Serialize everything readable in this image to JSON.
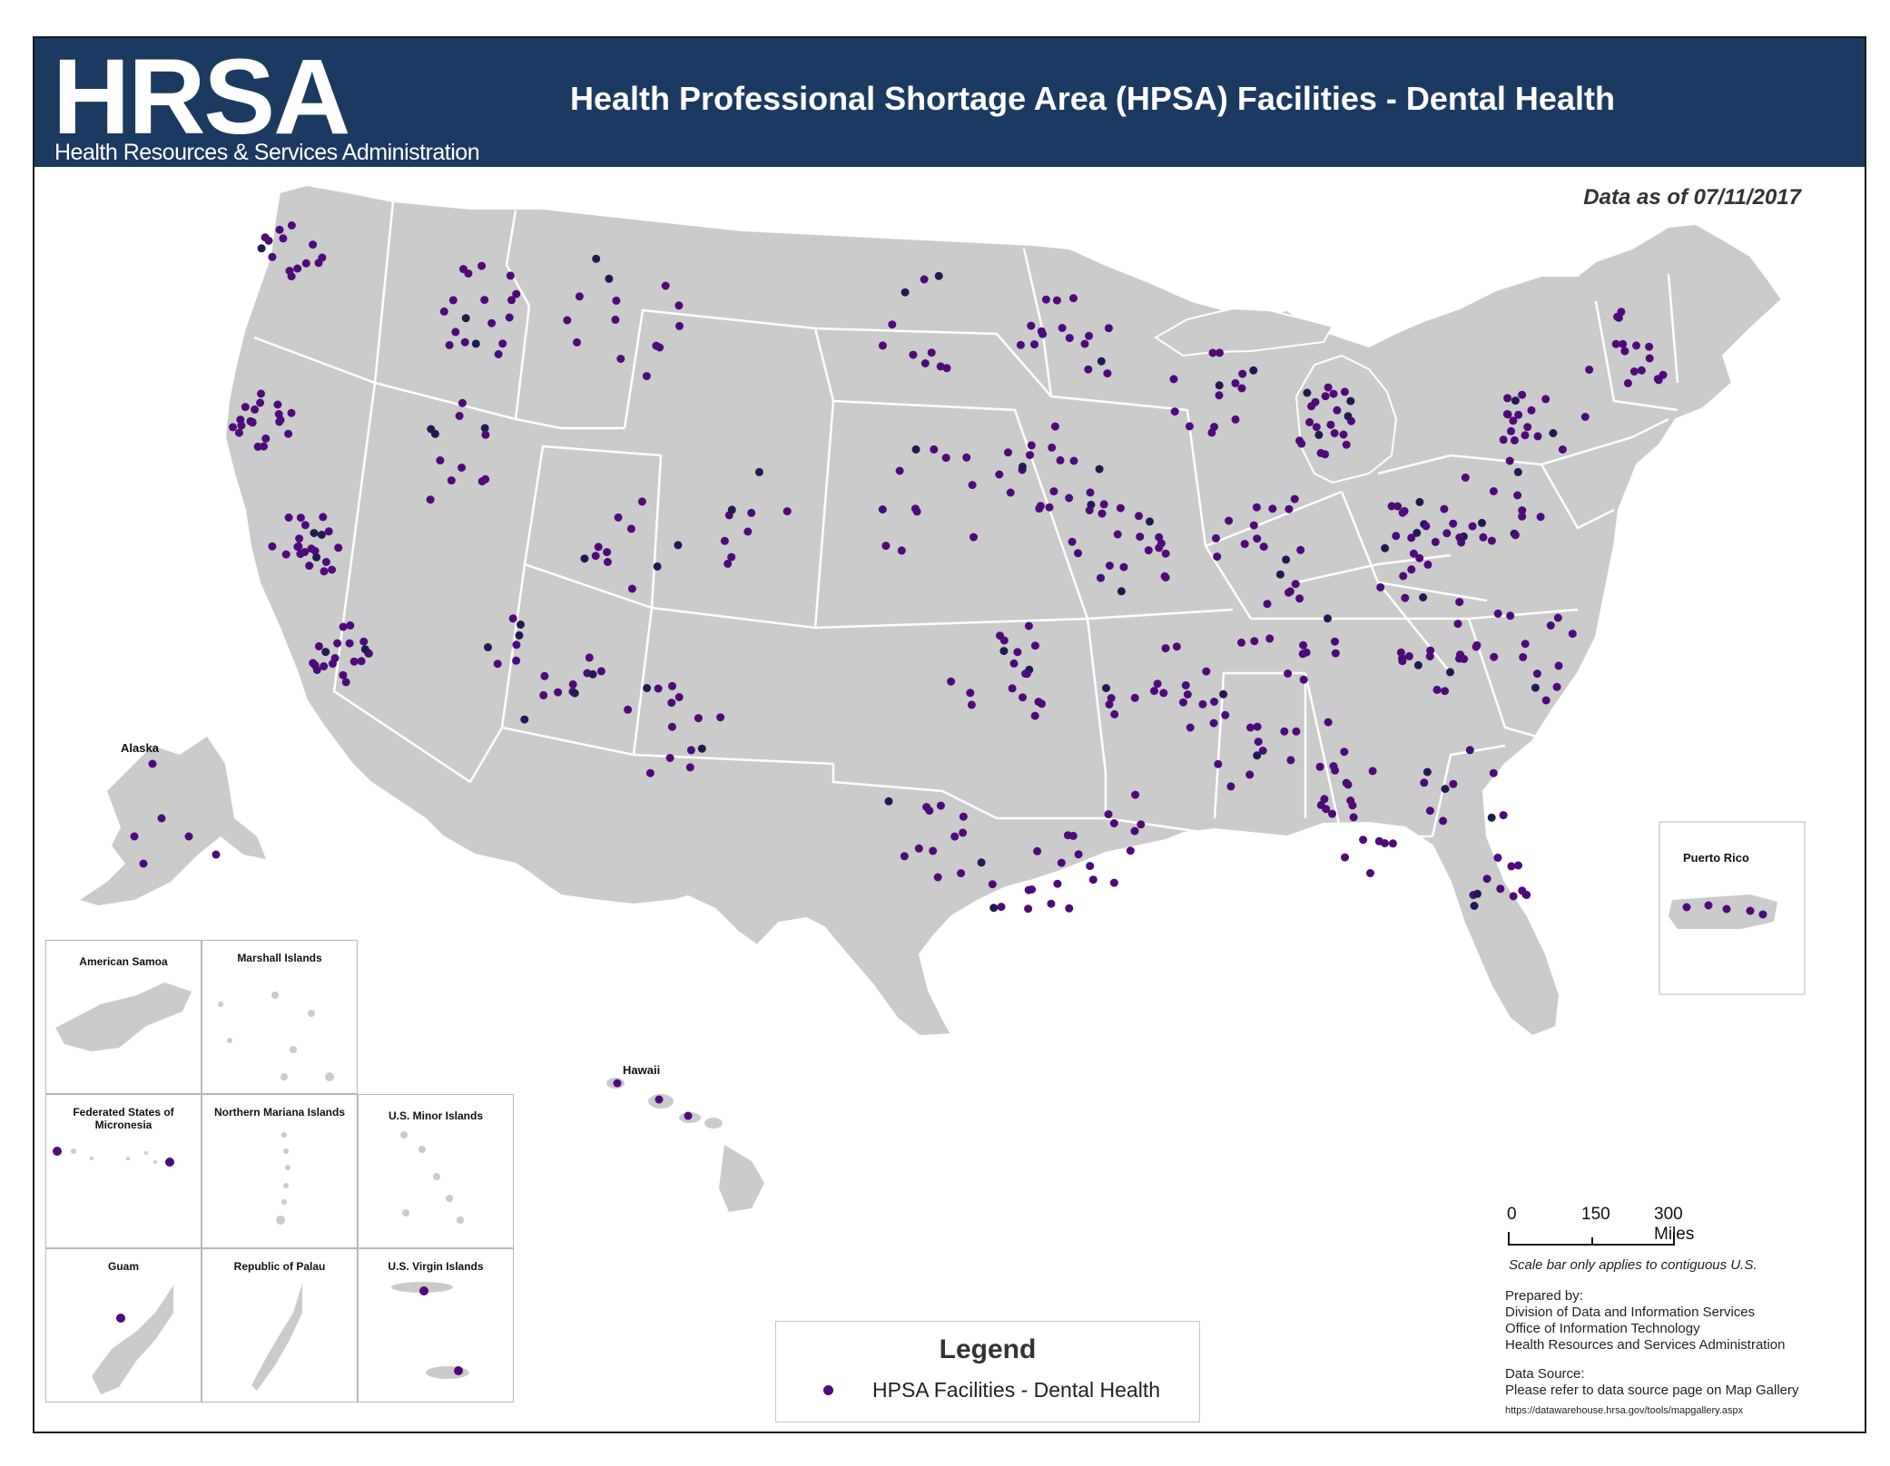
{
  "header": {
    "logo": "HRSA",
    "logo_subtitle": "Health Resources & Services Administration",
    "title": "Health Professional Shortage Area (HPSA) Facilities - Dental Health"
  },
  "data_date": "Data as of 07/11/2017",
  "colors": {
    "header_bg": "#1b3a61",
    "land": "#cbcbcb",
    "state_border": "#ffffff",
    "facility_dot": "#4f0a79",
    "facility_dot_dark": "#1f1b52"
  },
  "insets": {
    "alaska": "Alaska",
    "hawaii": "Hawaii",
    "puerto_rico": "Puerto Rico",
    "american_samoa": "American Samoa",
    "marshall_islands": "Marshall Islands",
    "micronesia": "Federated States of Micronesia",
    "northern_mariana": "Northern Mariana Islands",
    "us_minor": "U.S. Minor Islands",
    "guam": "Guam",
    "palau": "Republic of Palau",
    "virgin_islands": "U.S. Virgin Islands"
  },
  "legend": {
    "title": "Legend",
    "item": "HPSA Facilities -  Dental Health"
  },
  "scale_bar": {
    "labels": [
      "0",
      "150",
      "300 Miles"
    ],
    "note": "Scale bar only applies to contiguous U.S."
  },
  "prepared_by": {
    "heading": "Prepared by:",
    "lines": [
      "Division of Data and Information Services",
      "Office of Information Technology",
      "Health Resources and Services Administration"
    ]
  },
  "data_source": {
    "heading": "Data Source:",
    "line": "Please refer to data source page on Map Gallery",
    "url": "https://datawarehouse.hrsa.gov/tools/mapgallery.aspx"
  }
}
